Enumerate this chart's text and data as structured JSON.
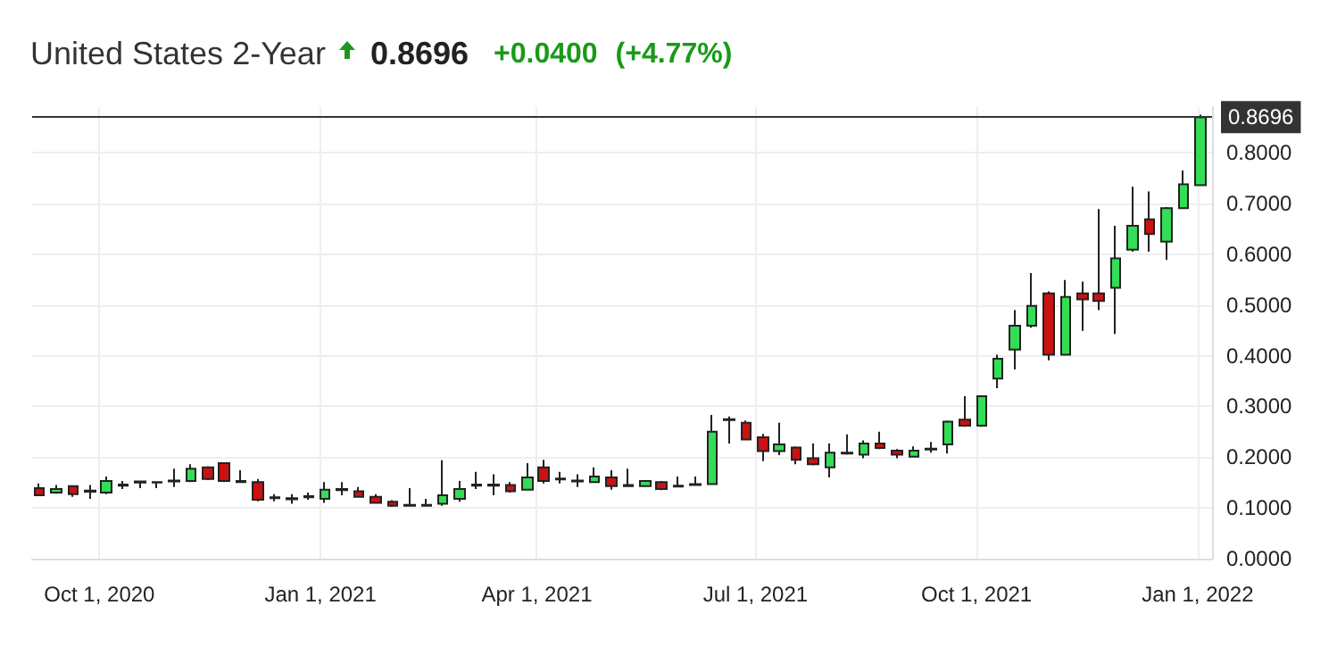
{
  "chart_data": {
    "type": "candlestick",
    "title": "United States 2-Year",
    "annotations": [
      "0.8696",
      "+0.0400",
      "(+4.77%)"
    ],
    "x": [
      "2020-09-06",
      "2020-09-13",
      "2020-09-20",
      "2020-09-27",
      "2020-10-04",
      "2020-10-11",
      "2020-10-18",
      "2020-10-25",
      "2020-11-01",
      "2020-11-08",
      "2020-11-15",
      "2020-11-22",
      "2020-11-29",
      "2020-12-06",
      "2020-12-13",
      "2020-12-20",
      "2020-12-27",
      "2021-01-03",
      "2021-01-10",
      "2021-01-17",
      "2021-01-24",
      "2021-01-31",
      "2021-02-07",
      "2021-02-14",
      "2021-02-21",
      "2021-02-28",
      "2021-03-07",
      "2021-03-14",
      "2021-03-21",
      "2021-03-28",
      "2021-04-04",
      "2021-04-11",
      "2021-04-18",
      "2021-04-25",
      "2021-05-02",
      "2021-05-09",
      "2021-05-16",
      "2021-05-23",
      "2021-05-30",
      "2021-06-06",
      "2021-06-13",
      "2021-06-20",
      "2021-06-27",
      "2021-07-04",
      "2021-07-11",
      "2021-07-18",
      "2021-07-25",
      "2021-08-01",
      "2021-08-08",
      "2021-08-15",
      "2021-08-22",
      "2021-08-29",
      "2021-09-05",
      "2021-09-12",
      "2021-09-19",
      "2021-09-26",
      "2021-10-03",
      "2021-10-10",
      "2021-10-17",
      "2021-10-24",
      "2021-10-31",
      "2021-11-07",
      "2021-11-14",
      "2021-11-21",
      "2021-11-28",
      "2021-12-05",
      "2021-12-12",
      "2021-12-19",
      "2021-12-26",
      "2022-01-02"
    ],
    "ohlc": [
      [
        0.139,
        0.148,
        0.124,
        0.125
      ],
      [
        0.13,
        0.145,
        0.128,
        0.137
      ],
      [
        0.143,
        0.144,
        0.122,
        0.127
      ],
      [
        0.132,
        0.145,
        0.118,
        0.134
      ],
      [
        0.13,
        0.162,
        0.127,
        0.153
      ],
      [
        0.144,
        0.153,
        0.137,
        0.146
      ],
      [
        0.152,
        0.153,
        0.139,
        0.15
      ],
      [
        0.151,
        0.152,
        0.139,
        0.15
      ],
      [
        0.152,
        0.177,
        0.141,
        0.154
      ],
      [
        0.153,
        0.186,
        0.151,
        0.177
      ],
      [
        0.18,
        0.182,
        0.155,
        0.157
      ],
      [
        0.188,
        0.19,
        0.151,
        0.153
      ],
      [
        0.153,
        0.174,
        0.15,
        0.151
      ],
      [
        0.151,
        0.157,
        0.113,
        0.116
      ],
      [
        0.119,
        0.127,
        0.113,
        0.121
      ],
      [
        0.117,
        0.127,
        0.108,
        0.119
      ],
      [
        0.123,
        0.13,
        0.116,
        0.121
      ],
      [
        0.118,
        0.151,
        0.11,
        0.136
      ],
      [
        0.135,
        0.151,
        0.125,
        0.137
      ],
      [
        0.133,
        0.141,
        0.12,
        0.122
      ],
      [
        0.122,
        0.127,
        0.108,
        0.11
      ],
      [
        0.112,
        0.115,
        0.102,
        0.104
      ],
      [
        0.104,
        0.139,
        0.104,
        0.106
      ],
      [
        0.104,
        0.118,
        0.103,
        0.106
      ],
      [
        0.108,
        0.194,
        0.104,
        0.125
      ],
      [
        0.118,
        0.153,
        0.112,
        0.137
      ],
      [
        0.144,
        0.171,
        0.137,
        0.146
      ],
      [
        0.146,
        0.166,
        0.125,
        0.144
      ],
      [
        0.145,
        0.151,
        0.13,
        0.133
      ],
      [
        0.136,
        0.188,
        0.134,
        0.16
      ],
      [
        0.18,
        0.195,
        0.148,
        0.153
      ],
      [
        0.158,
        0.171,
        0.148,
        0.156
      ],
      [
        0.152,
        0.166,
        0.141,
        0.154
      ],
      [
        0.151,
        0.18,
        0.15,
        0.162
      ],
      [
        0.16,
        0.174,
        0.136,
        0.143
      ],
      [
        0.145,
        0.177,
        0.142,
        0.143
      ],
      [
        0.143,
        0.155,
        0.141,
        0.153
      ],
      [
        0.151,
        0.153,
        0.135,
        0.137
      ],
      [
        0.142,
        0.162,
        0.141,
        0.144
      ],
      [
        0.145,
        0.162,
        0.144,
        0.147
      ],
      [
        0.147,
        0.283,
        0.145,
        0.25
      ],
      [
        0.273,
        0.28,
        0.227,
        0.275
      ],
      [
        0.268,
        0.272,
        0.233,
        0.235
      ],
      [
        0.239,
        0.246,
        0.192,
        0.212
      ],
      [
        0.212,
        0.268,
        0.204,
        0.225
      ],
      [
        0.219,
        0.221,
        0.186,
        0.195
      ],
      [
        0.198,
        0.227,
        0.184,
        0.186
      ],
      [
        0.18,
        0.227,
        0.16,
        0.209
      ],
      [
        0.207,
        0.245,
        0.205,
        0.209
      ],
      [
        0.205,
        0.233,
        0.198,
        0.227
      ],
      [
        0.227,
        0.25,
        0.216,
        0.218
      ],
      [
        0.213,
        0.216,
        0.198,
        0.205
      ],
      [
        0.201,
        0.221,
        0.2,
        0.213
      ],
      [
        0.215,
        0.23,
        0.209,
        0.217
      ],
      [
        0.225,
        0.272,
        0.207,
        0.27
      ],
      [
        0.274,
        0.32,
        0.26,
        0.262
      ],
      [
        0.262,
        0.322,
        0.26,
        0.32
      ],
      [
        0.355,
        0.402,
        0.336,
        0.394
      ],
      [
        0.412,
        0.49,
        0.373,
        0.459
      ],
      [
        0.459,
        0.563,
        0.455,
        0.498
      ],
      [
        0.523,
        0.527,
        0.391,
        0.402
      ],
      [
        0.402,
        0.549,
        0.4,
        0.516
      ],
      [
        0.523,
        0.546,
        0.449,
        0.511
      ],
      [
        0.523,
        0.689,
        0.49,
        0.508
      ],
      [
        0.534,
        0.656,
        0.443,
        0.592
      ],
      [
        0.609,
        0.733,
        0.605,
        0.656
      ],
      [
        0.669,
        0.724,
        0.605,
        0.64
      ],
      [
        0.625,
        0.693,
        0.589,
        0.691
      ],
      [
        0.691,
        0.765,
        0.689,
        0.738
      ],
      [
        0.736,
        0.875,
        0.735,
        0.8696
      ]
    ],
    "colors": [
      "#cc1111",
      "#33dd55",
      "#cc1111",
      "#33dd55",
      "#33dd55",
      "#33dd55",
      "#cc1111",
      "#cc1111",
      "#33dd55",
      "#33dd55",
      "#cc1111",
      "#cc1111",
      "#cc1111",
      "#cc1111",
      "#33dd55",
      "#33dd55",
      "#cc1111",
      "#33dd55",
      "#33dd55",
      "#cc1111",
      "#cc1111",
      "#cc1111",
      "#33dd55",
      "#33dd55",
      "#33dd55",
      "#33dd55",
      "#33dd55",
      "#cc1111",
      "#cc1111",
      "#33dd55",
      "#cc1111",
      "#cc1111",
      "#33dd55",
      "#33dd55",
      "#cc1111",
      "#cc1111",
      "#33dd55",
      "#cc1111",
      "#33dd55",
      "#33dd55",
      "#33dd55",
      "#33dd55",
      "#cc1111",
      "#cc1111",
      "#33dd55",
      "#cc1111",
      "#cc1111",
      "#33dd55",
      "#33dd55",
      "#33dd55",
      "#cc1111",
      "#cc1111",
      "#33dd55",
      "#33dd55",
      "#33dd55",
      "#cc1111",
      "#33dd55",
      "#33dd55",
      "#33dd55",
      "#33dd55",
      "#cc1111",
      "#33dd55",
      "#cc1111",
      "#cc1111",
      "#33dd55",
      "#33dd55",
      "#cc1111",
      "#33dd55",
      "#33dd55",
      "#33dd55"
    ],
    "xlim": [
      "2020-09-03",
      "2022-01-07"
    ],
    "xticks": [
      {
        "value": "2020-10-01",
        "label": "Oct 1, 2020"
      },
      {
        "value": "2021-01-01",
        "label": "Jan 1, 2021"
      },
      {
        "value": "2021-04-01",
        "label": "Apr 1, 2021"
      },
      {
        "value": "2021-07-01",
        "label": "Jul 1, 2021"
      },
      {
        "value": "2021-10-01",
        "label": "Oct 1, 2021"
      },
      {
        "value": "2022-01-01",
        "label": "Jan 1, 2022"
      }
    ],
    "ylim": [
      0,
      0.89
    ],
    "yticks": [
      {
        "value": 0,
        "label": "0.0000"
      },
      {
        "value": 0.1,
        "label": "0.1000"
      },
      {
        "value": 0.2,
        "label": "0.2000"
      },
      {
        "value": 0.3,
        "label": "0.3000"
      },
      {
        "value": 0.4,
        "label": "0.4000"
      },
      {
        "value": 0.5,
        "label": "0.5000"
      },
      {
        "value": 0.6,
        "label": "0.6000"
      },
      {
        "value": 0.7,
        "label": "0.7000"
      },
      {
        "value": 0.8,
        "label": "0.8000"
      }
    ],
    "ref_lines": [
      {
        "axis": "y",
        "value": 0.8696,
        "label": "0.8696",
        "color": "#333333"
      }
    ],
    "grid": true
  }
}
